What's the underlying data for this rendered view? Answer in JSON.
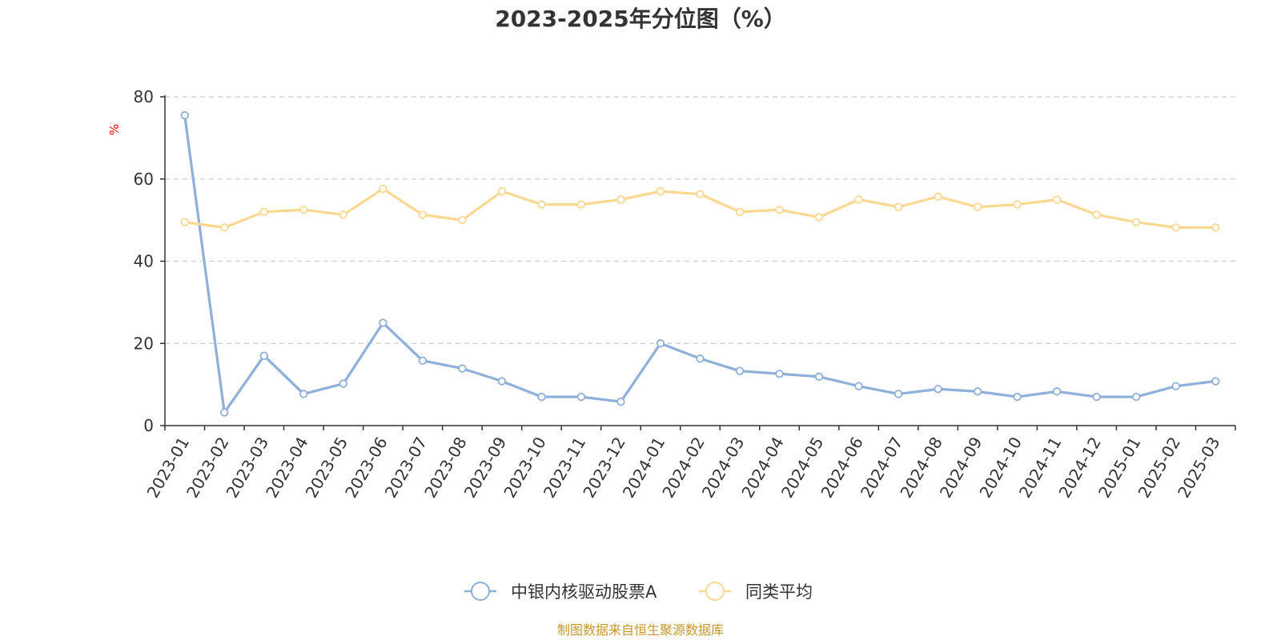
{
  "chart_data": {
    "type": "line",
    "title": "2023-2025年分位图（%）",
    "ylabel": "%",
    "xlabel": "",
    "ylim": [
      0,
      80
    ],
    "yticks": [
      0,
      20,
      40,
      60,
      80
    ],
    "grid": true,
    "legend_position": "bottom-center",
    "categories": [
      "2023-01",
      "2023-02",
      "2023-03",
      "2023-04",
      "2023-05",
      "2023-06",
      "2023-07",
      "2023-08",
      "2023-09",
      "2023-10",
      "2023-11",
      "2023-12",
      "2024-01",
      "2024-02",
      "2024-03",
      "2024-04",
      "2024-05",
      "2024-06",
      "2024-07",
      "2024-08",
      "2024-09",
      "2024-10",
      "2024-11",
      "2024-12",
      "2025-01",
      "2025-02",
      "2025-03"
    ],
    "series": [
      {
        "name": "中银内核驱动股票A",
        "color": "#8eb0da",
        "values": [
          75.5,
          3.2,
          17.0,
          7.7,
          10.2,
          25.0,
          15.8,
          13.9,
          10.8,
          7.0,
          7.0,
          5.8,
          20.0,
          16.3,
          13.3,
          12.6,
          11.9,
          9.6,
          7.7,
          8.9,
          8.3,
          7.0,
          8.3,
          7.0,
          7.0,
          9.6,
          10.8
        ]
      },
      {
        "name": "同类平均",
        "color": "#fbd891",
        "values": [
          49.5,
          48.2,
          52.0,
          52.5,
          51.3,
          57.6,
          51.3,
          50.0,
          57.0,
          53.8,
          53.8,
          55.0,
          57.0,
          56.3,
          52.0,
          52.5,
          50.7,
          55.0,
          53.2,
          55.7,
          53.2,
          53.8,
          55.0,
          51.3,
          49.5,
          48.2,
          48.2
        ]
      }
    ]
  },
  "source_text": "制图数据来自恒生聚源数据库",
  "colors": {
    "axis": "#333333",
    "grid": "#cccccc",
    "unit_label": "#ff0000",
    "source": "#c9962a",
    "marker_fill": "#ffffff"
  }
}
